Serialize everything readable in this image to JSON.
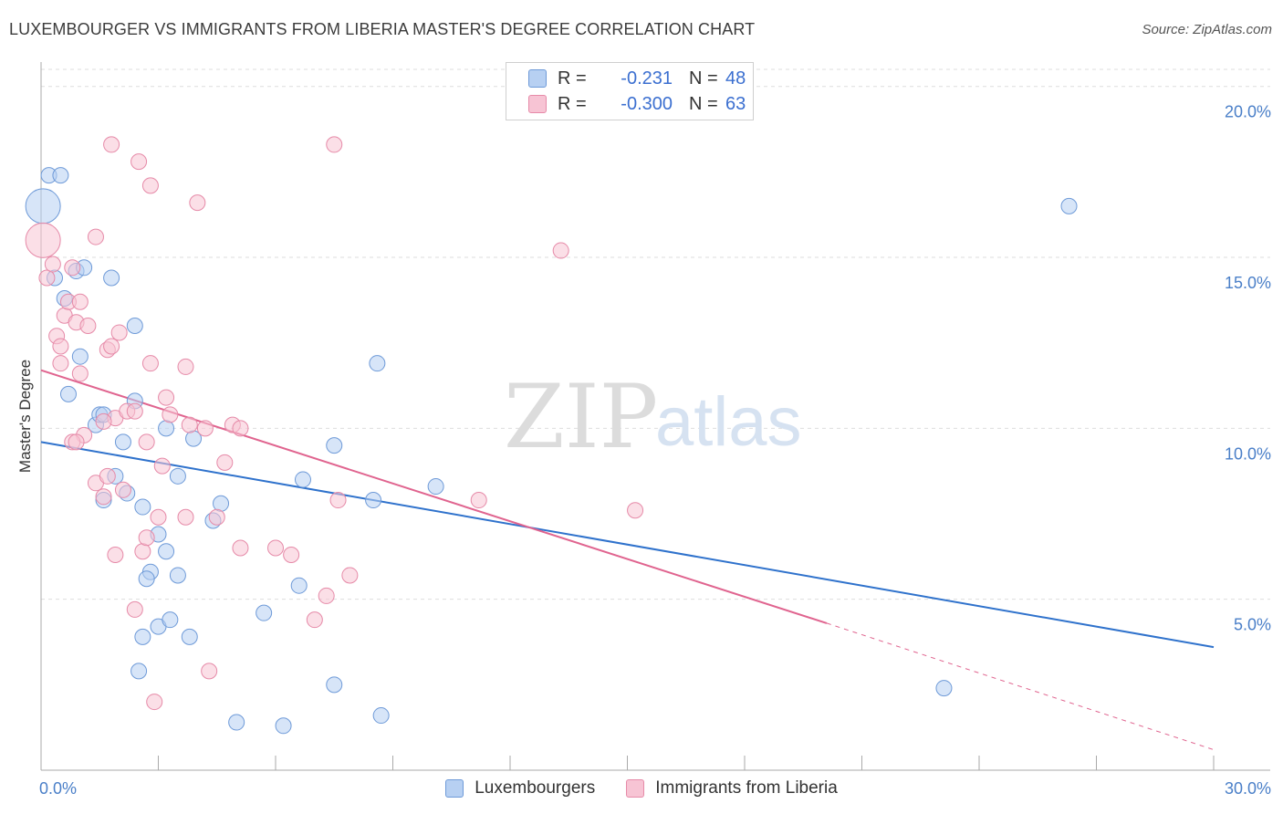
{
  "title": "LUXEMBOURGER VS IMMIGRANTS FROM LIBERIA MASTER'S DEGREE CORRELATION CHART",
  "source": "Source: ZipAtlas.com",
  "watermark": {
    "zip": "ZIP",
    "atlas": "atlas"
  },
  "legend": {
    "r_label": "R =",
    "n_label": "N =",
    "rows": [
      {
        "r": "-0.231",
        "n": "48"
      },
      {
        "r": "-0.300",
        "n": "63"
      }
    ]
  },
  "colors": {
    "blue_fill": "#b7d0f2",
    "blue_stroke": "#6e9ad8",
    "blue_line": "#2f72cc",
    "pink_fill": "#f7c4d4",
    "pink_stroke": "#e68aa8",
    "pink_line": "#e0648f",
    "grid": "#dedede",
    "axis": "#aaaaaa",
    "tick_text": "#4a7fc8"
  },
  "chart_data": {
    "type": "scatter",
    "title": "LUXEMBOURGER VS IMMIGRANTS FROM LIBERIA MASTER'S DEGREE CORRELATION CHART",
    "xlabel": "",
    "ylabel": "Master's Degree",
    "xlim": [
      0,
      30
    ],
    "ylim": [
      0,
      20.5
    ],
    "y_ticks": [
      5,
      10,
      15,
      20
    ],
    "y_tick_labels": [
      "5.0%",
      "10.0%",
      "15.0%",
      "20.0%"
    ],
    "x_tick_labels": [
      "0.0%",
      "30.0%"
    ],
    "legend_position": "top-center",
    "series": [
      {
        "name": "Luxembourgers",
        "color": "#6e9ad8",
        "r": -0.231,
        "n": 48,
        "trend": {
          "x": [
            0,
            30
          ],
          "y": [
            9.6,
            3.6
          ]
        },
        "points": [
          {
            "x": 0.05,
            "y": 16.5,
            "big": true
          },
          {
            "x": 0.2,
            "y": 17.4
          },
          {
            "x": 0.5,
            "y": 17.4
          },
          {
            "x": 0.35,
            "y": 14.4
          },
          {
            "x": 0.6,
            "y": 13.8
          },
          {
            "x": 0.9,
            "y": 14.6
          },
          {
            "x": 1.1,
            "y": 14.7
          },
          {
            "x": 1.8,
            "y": 14.4
          },
          {
            "x": 1.0,
            "y": 12.1
          },
          {
            "x": 2.4,
            "y": 13.0
          },
          {
            "x": 0.7,
            "y": 11.0
          },
          {
            "x": 1.4,
            "y": 10.1
          },
          {
            "x": 1.5,
            "y": 10.4
          },
          {
            "x": 1.6,
            "y": 10.4
          },
          {
            "x": 2.4,
            "y": 10.8
          },
          {
            "x": 2.1,
            "y": 9.6
          },
          {
            "x": 1.9,
            "y": 8.6
          },
          {
            "x": 1.6,
            "y": 7.9
          },
          {
            "x": 2.2,
            "y": 8.1
          },
          {
            "x": 3.2,
            "y": 10.0
          },
          {
            "x": 3.5,
            "y": 8.6
          },
          {
            "x": 3.9,
            "y": 9.7
          },
          {
            "x": 2.6,
            "y": 7.7
          },
          {
            "x": 2.8,
            "y": 5.8
          },
          {
            "x": 2.7,
            "y": 5.6
          },
          {
            "x": 3.0,
            "y": 6.9
          },
          {
            "x": 3.2,
            "y": 6.4
          },
          {
            "x": 3.5,
            "y": 5.7
          },
          {
            "x": 4.6,
            "y": 7.8
          },
          {
            "x": 4.4,
            "y": 7.3
          },
          {
            "x": 6.7,
            "y": 8.5
          },
          {
            "x": 6.6,
            "y": 5.4
          },
          {
            "x": 5.7,
            "y": 4.6
          },
          {
            "x": 8.5,
            "y": 7.9
          },
          {
            "x": 10.1,
            "y": 8.3
          },
          {
            "x": 3.0,
            "y": 4.2
          },
          {
            "x": 3.3,
            "y": 4.4
          },
          {
            "x": 2.6,
            "y": 3.9
          },
          {
            "x": 3.8,
            "y": 3.9
          },
          {
            "x": 2.5,
            "y": 2.9
          },
          {
            "x": 7.5,
            "y": 9.5
          },
          {
            "x": 8.6,
            "y": 11.9
          },
          {
            "x": 7.5,
            "y": 2.5
          },
          {
            "x": 5.0,
            "y": 1.4
          },
          {
            "x": 6.2,
            "y": 1.3
          },
          {
            "x": 8.7,
            "y": 1.6
          },
          {
            "x": 26.3,
            "y": 16.5
          },
          {
            "x": 23.1,
            "y": 2.4
          }
        ]
      },
      {
        "name": "Immigrants from Liberia",
        "color": "#e68aa8",
        "r": -0.3,
        "n": 63,
        "trend": {
          "x": [
            0,
            20.1
          ],
          "y": [
            11.7,
            4.3
          ]
        },
        "trend_dashed": {
          "x": [
            20.1,
            30
          ],
          "y": [
            4.3,
            0.6
          ]
        },
        "points": [
          {
            "x": 0.05,
            "y": 15.5,
            "big": true
          },
          {
            "x": 0.15,
            "y": 14.4
          },
          {
            "x": 0.3,
            "y": 14.8
          },
          {
            "x": 0.8,
            "y": 14.7
          },
          {
            "x": 1.4,
            "y": 15.6
          },
          {
            "x": 1.8,
            "y": 18.3
          },
          {
            "x": 2.5,
            "y": 17.8
          },
          {
            "x": 2.8,
            "y": 17.1
          },
          {
            "x": 4.0,
            "y": 16.6
          },
          {
            "x": 7.5,
            "y": 18.3
          },
          {
            "x": 13.3,
            "y": 15.2
          },
          {
            "x": 0.4,
            "y": 12.7
          },
          {
            "x": 0.6,
            "y": 13.3
          },
          {
            "x": 0.7,
            "y": 13.7
          },
          {
            "x": 1.0,
            "y": 13.7
          },
          {
            "x": 0.9,
            "y": 13.1
          },
          {
            "x": 1.2,
            "y": 13.0
          },
          {
            "x": 0.5,
            "y": 12.4
          },
          {
            "x": 2.0,
            "y": 12.8
          },
          {
            "x": 1.7,
            "y": 12.3
          },
          {
            "x": 1.8,
            "y": 12.4
          },
          {
            "x": 0.5,
            "y": 11.9
          },
          {
            "x": 1.0,
            "y": 11.6
          },
          {
            "x": 2.8,
            "y": 11.9
          },
          {
            "x": 3.7,
            "y": 11.8
          },
          {
            "x": 3.2,
            "y": 10.9
          },
          {
            "x": 1.9,
            "y": 10.3
          },
          {
            "x": 1.6,
            "y": 10.2
          },
          {
            "x": 2.2,
            "y": 10.5
          },
          {
            "x": 2.4,
            "y": 10.5
          },
          {
            "x": 3.3,
            "y": 10.4
          },
          {
            "x": 1.1,
            "y": 9.8
          },
          {
            "x": 0.8,
            "y": 9.6
          },
          {
            "x": 3.8,
            "y": 10.1
          },
          {
            "x": 4.9,
            "y": 10.1
          },
          {
            "x": 5.1,
            "y": 10.0
          },
          {
            "x": 2.7,
            "y": 9.6
          },
          {
            "x": 1.4,
            "y": 8.4
          },
          {
            "x": 1.6,
            "y": 8.0
          },
          {
            "x": 1.7,
            "y": 8.6
          },
          {
            "x": 2.1,
            "y": 8.2
          },
          {
            "x": 3.1,
            "y": 8.9
          },
          {
            "x": 4.7,
            "y": 9.0
          },
          {
            "x": 3.0,
            "y": 7.4
          },
          {
            "x": 3.7,
            "y": 7.4
          },
          {
            "x": 4.5,
            "y": 7.4
          },
          {
            "x": 7.6,
            "y": 7.9
          },
          {
            "x": 11.2,
            "y": 7.9
          },
          {
            "x": 15.2,
            "y": 7.6
          },
          {
            "x": 1.9,
            "y": 6.3
          },
          {
            "x": 2.6,
            "y": 6.4
          },
          {
            "x": 2.7,
            "y": 6.8
          },
          {
            "x": 5.1,
            "y": 6.5
          },
          {
            "x": 6.0,
            "y": 6.5
          },
          {
            "x": 6.4,
            "y": 6.3
          },
          {
            "x": 7.9,
            "y": 5.7
          },
          {
            "x": 7.3,
            "y": 5.1
          },
          {
            "x": 2.4,
            "y": 4.7
          },
          {
            "x": 7.0,
            "y": 4.4
          },
          {
            "x": 4.3,
            "y": 2.9
          },
          {
            "x": 2.9,
            "y": 2.0
          },
          {
            "x": 4.2,
            "y": 10.0
          },
          {
            "x": 0.9,
            "y": 9.6
          }
        ]
      }
    ]
  }
}
